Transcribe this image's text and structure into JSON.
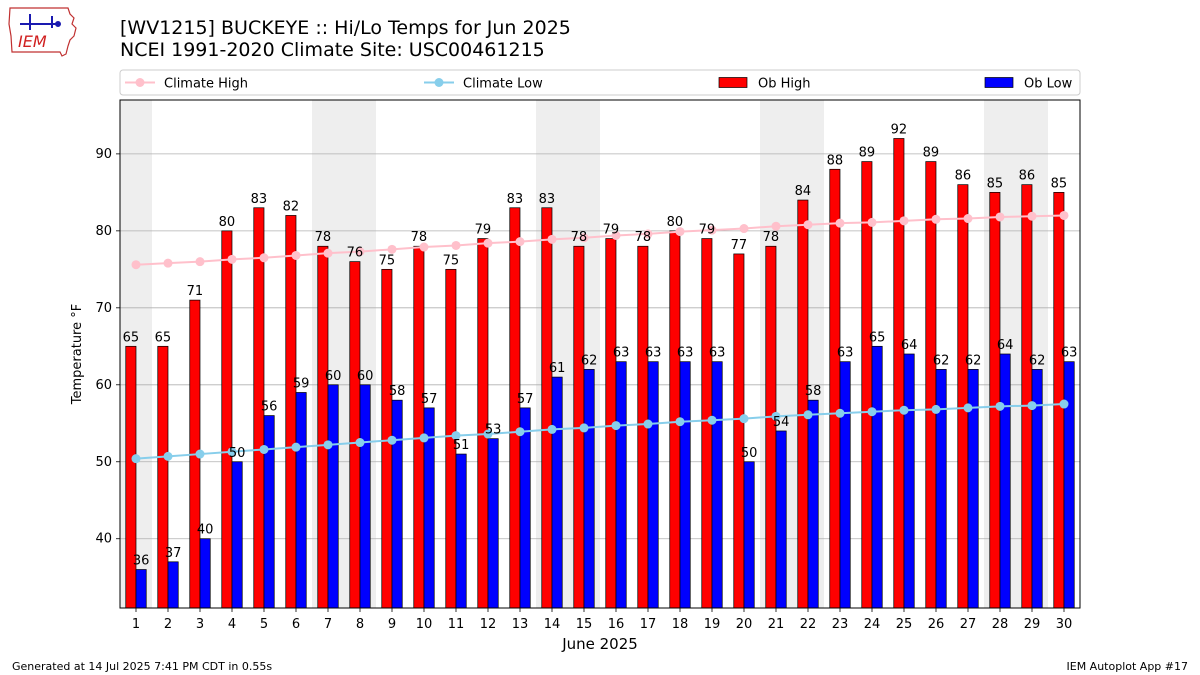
{
  "header": {
    "logo_text": "IEM",
    "title_line1": "[WV1215] BUCKEYE :: Hi/Lo Temps for Jun 2025",
    "title_line2": "NCEI 1991-2020 Climate Site: USC00461215"
  },
  "footer": {
    "generated": "Generated at 14 Jul 2025 7:41 PM CDT in 0.55s",
    "app": "IEM Autoplot App #17"
  },
  "colors": {
    "ob_high": "#ff0000",
    "ob_low": "#0000ff",
    "climate_high": "#ffc0cb",
    "climate_low": "#87ceeb",
    "weekend_band": "#eeeeee"
  },
  "chart_data": {
    "type": "bar",
    "xlabel": "June 2025",
    "ylabel": "Temperature °F",
    "ylim": [
      31,
      97
    ],
    "yticks": [
      40,
      50,
      60,
      70,
      80,
      90
    ],
    "grid": true,
    "legend_position": "top",
    "categories": [
      1,
      2,
      3,
      4,
      5,
      6,
      7,
      8,
      9,
      10,
      11,
      12,
      13,
      14,
      15,
      16,
      17,
      18,
      19,
      20,
      21,
      22,
      23,
      24,
      25,
      26,
      27,
      28,
      29,
      30
    ],
    "shaded_days": [
      1,
      7,
      8,
      14,
      15,
      21,
      22,
      28,
      29
    ],
    "series": [
      {
        "name": "Ob High",
        "kind": "bar",
        "values": [
          65,
          65,
          71,
          80,
          83,
          82,
          78,
          76,
          75,
          78,
          75,
          79,
          83,
          83,
          78,
          79,
          78,
          80,
          79,
          77,
          78,
          84,
          88,
          89,
          92,
          89,
          86,
          85,
          86,
          85
        ]
      },
      {
        "name": "Ob Low",
        "kind": "bar",
        "values": [
          36,
          37,
          40,
          50,
          56,
          59,
          60,
          60,
          58,
          57,
          51,
          53,
          57,
          61,
          62,
          63,
          63,
          63,
          63,
          50,
          54,
          58,
          63,
          65,
          64,
          62,
          62,
          64,
          62,
          63
        ]
      },
      {
        "name": "Climate High",
        "kind": "line",
        "values": [
          75.6,
          75.8,
          76.0,
          76.3,
          76.5,
          76.8,
          77.1,
          77.3,
          77.6,
          77.9,
          78.1,
          78.4,
          78.6,
          78.9,
          79.1,
          79.4,
          79.6,
          79.9,
          80.1,
          80.3,
          80.6,
          80.8,
          81.0,
          81.1,
          81.3,
          81.5,
          81.6,
          81.8,
          81.9,
          82.0
        ]
      },
      {
        "name": "Climate Low",
        "kind": "line",
        "values": [
          50.4,
          50.7,
          51.0,
          51.3,
          51.6,
          51.9,
          52.2,
          52.5,
          52.8,
          53.1,
          53.4,
          53.6,
          53.9,
          54.2,
          54.4,
          54.7,
          54.9,
          55.2,
          55.4,
          55.6,
          55.9,
          56.1,
          56.3,
          56.5,
          56.7,
          56.8,
          57.0,
          57.2,
          57.3,
          57.5
        ]
      }
    ]
  }
}
